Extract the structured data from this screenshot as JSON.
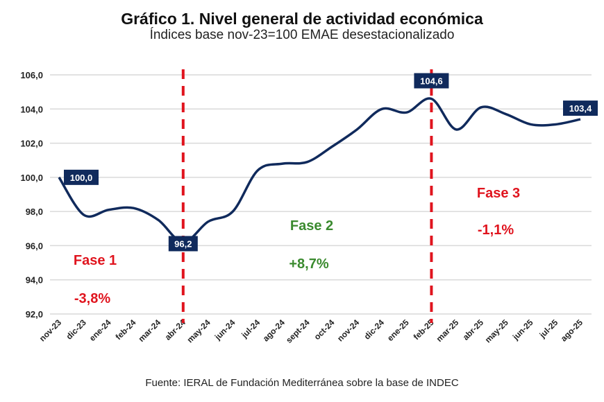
{
  "chart_data": {
    "type": "line",
    "title": "Gráfico 1. Nivel general de actividad económica",
    "subtitle": "Índices base nov-23=100 EMAE desestacionalizado",
    "source": "Fuente: IERAL de Fundación Mediterránea sobre la base de INDEC",
    "categories": [
      "nov-23",
      "dic-23",
      "ene-24",
      "feb-24",
      "mar-24",
      "abr-24",
      "may-24",
      "jun-24",
      "jul-24",
      "ago-24",
      "sept-24",
      "oct-24",
      "nov-24",
      "dic-24",
      "ene-25",
      "feb-25",
      "mar-25",
      "abr-25",
      "may-25",
      "jun-25",
      "jul-25",
      "ago-25"
    ],
    "values": [
      100.0,
      97.8,
      98.1,
      98.2,
      97.5,
      96.2,
      97.4,
      98.0,
      100.4,
      100.8,
      100.9,
      101.8,
      102.8,
      104.0,
      103.8,
      104.6,
      102.8,
      104.1,
      103.7,
      103.1,
      103.1,
      103.4
    ],
    "ylim": [
      92,
      106
    ],
    "yticks": [
      "92,0",
      "94,0",
      "96,0",
      "98,0",
      "100,0",
      "102,0",
      "104,0",
      "106,0"
    ],
    "grid": true,
    "line_color": "#102a5c",
    "data_labels": [
      {
        "index": 0,
        "text": "100,0"
      },
      {
        "index": 5,
        "text": "96,2"
      },
      {
        "index": 15,
        "text": "104,6"
      },
      {
        "index": 21,
        "text": "103,4"
      }
    ],
    "dividers": [
      {
        "index": 5
      },
      {
        "index": 15
      }
    ],
    "divider_color": "#e0141e",
    "annotations": [
      {
        "label": "Fase 1",
        "value": "-3,8%",
        "color": "#e0141e"
      },
      {
        "label": "Fase 2",
        "value": "+8,7%",
        "color": "#3a8a2e"
      },
      {
        "label": "Fase 3",
        "value": "-1,1%",
        "color": "#e0141e"
      }
    ]
  }
}
